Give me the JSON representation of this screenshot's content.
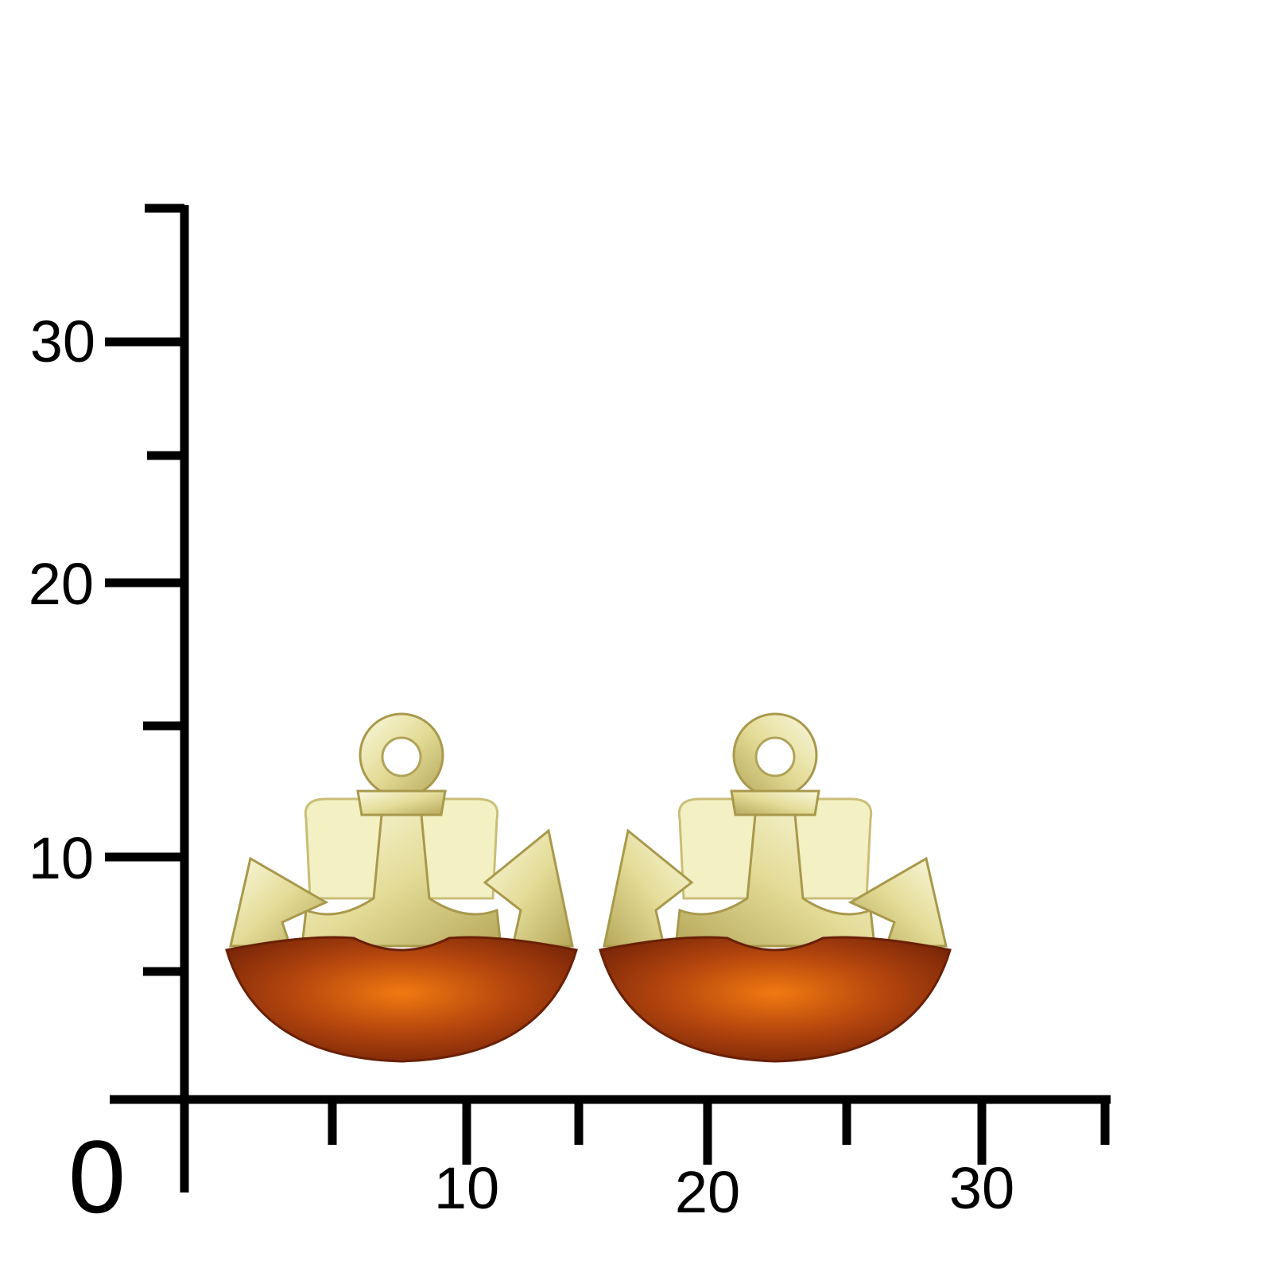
{
  "scale": {
    "unit_ticks_y": [
      "30",
      "20",
      "10"
    ],
    "unit_ticks_x": [
      "10",
      "20",
      "30"
    ],
    "origin": "0"
  },
  "product": {
    "items": [
      "earring-left",
      "earring-right"
    ],
    "metal_color": "#e8e2a8",
    "amber_color": "#a5400c"
  }
}
